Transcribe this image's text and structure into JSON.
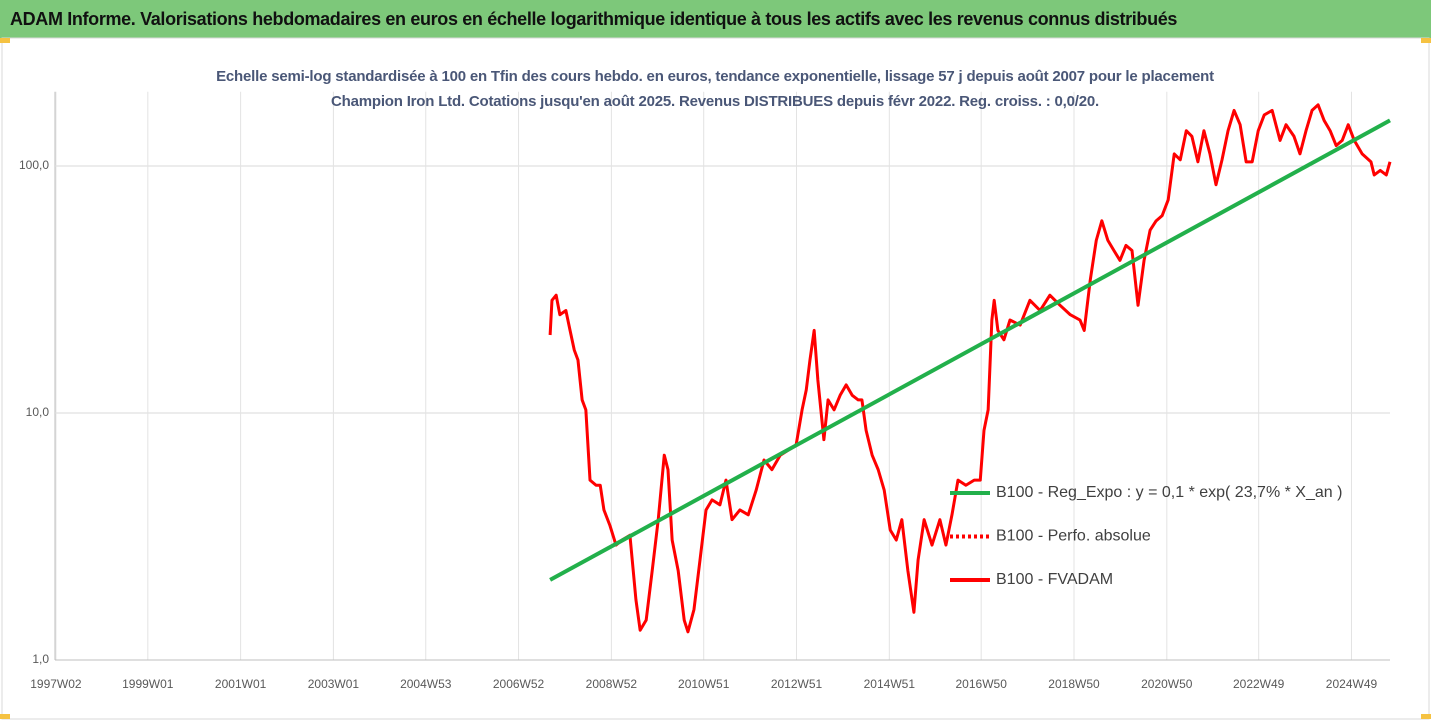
{
  "header": {
    "title": "ADAM Informe. Valorisations hebdomadaires en euros en échelle logarithmique identique à tous les actifs avec les revenus connus distribués"
  },
  "chart_data": {
    "type": "line",
    "title": "Echelle semi-log standardisée à 100 en Tfin des cours hebdo. en euros, tendance exponentielle, lissage 57 j depuis août 2007 pour le placement Champion Iron Ltd. Cotations jusqu'en août 2025. Revenus DISTRIBUES depuis févr 2022. Reg. croiss. : 0,0/20.",
    "xlim": [
      1997,
      2025.77
    ],
    "xticks": [
      {
        "value": 1997.02,
        "label": "1997W02"
      },
      {
        "value": 1999.0,
        "label": "1999W01"
      },
      {
        "value": 2001.0,
        "label": "2001W01"
      },
      {
        "value": 2003.0,
        "label": "2003W01"
      },
      {
        "value": 2004.99,
        "label": "2004W53"
      },
      {
        "value": 2006.99,
        "label": "2006W52"
      },
      {
        "value": 2008.99,
        "label": "2008W52"
      },
      {
        "value": 2010.98,
        "label": "2010W51"
      },
      {
        "value": 2012.98,
        "label": "2012W51"
      },
      {
        "value": 2014.98,
        "label": "2014W51"
      },
      {
        "value": 2016.96,
        "label": "2016W50"
      },
      {
        "value": 2018.96,
        "label": "2018W50"
      },
      {
        "value": 2020.96,
        "label": "2020W50"
      },
      {
        "value": 2022.94,
        "label": "2022W49"
      },
      {
        "value": 2024.94,
        "label": "2024W49"
      }
    ],
    "ylim": [
      1,
      200
    ],
    "yticks": [
      {
        "value": 1,
        "label": "1,0"
      },
      {
        "value": 10,
        "label": "10,0"
      },
      {
        "value": 100,
        "label": "100,0"
      }
    ],
    "log_y": true,
    "grid": true,
    "legend": "center-right",
    "series": [
      {
        "name": "B100 - Reg_Expo : y = 0,1 * exp( 23,7% *  X_an )",
        "color": "#22b04b",
        "line_style": "solid",
        "x": [
          2007.67,
          2025.77
        ],
        "values": [
          2.11,
          153
        ]
      },
      {
        "name": "B100 - Perfo. absolue",
        "color": "#ff0000",
        "line_style": "dotted",
        "x": [],
        "values": []
      },
      {
        "name": "B100 - FVADAM",
        "color": "#ff0000",
        "line_style": "solid",
        "x": [
          2007.67,
          2007.71,
          2007.8,
          2007.88,
          2008.01,
          2008.1,
          2008.19,
          2008.27,
          2008.36,
          2008.44,
          2008.53,
          2008.66,
          2008.75,
          2008.83,
          2008.96,
          2009.09,
          2009.22,
          2009.39,
          2009.52,
          2009.61,
          2009.74,
          2009.87,
          2010.0,
          2010.13,
          2010.21,
          2010.3,
          2010.43,
          2010.56,
          2010.64,
          2010.77,
          2010.9,
          2011.03,
          2011.16,
          2011.33,
          2011.46,
          2011.59,
          2011.76,
          2011.94,
          2012.11,
          2012.28,
          2012.45,
          2012.63,
          2012.8,
          2012.97,
          2013.1,
          2013.19,
          2013.27,
          2013.36,
          2013.44,
          2013.57,
          2013.66,
          2013.79,
          2013.92,
          2014.05,
          2014.18,
          2014.31,
          2014.39,
          2014.48,
          2014.61,
          2014.74,
          2014.87,
          2015.0,
          2015.13,
          2015.25,
          2015.38,
          2015.51,
          2015.6,
          2015.73,
          2015.9,
          2016.07,
          2016.2,
          2016.33,
          2016.46,
          2016.63,
          2016.81,
          2016.94,
          2017.02,
          2017.11,
          2017.19,
          2017.24,
          2017.32,
          2017.45,
          2017.58,
          2017.8,
          2018.01,
          2018.23,
          2018.44,
          2018.66,
          2018.88,
          2019.09,
          2019.18,
          2019.31,
          2019.44,
          2019.56,
          2019.69,
          2019.82,
          2019.95,
          2020.08,
          2020.21,
          2020.34,
          2020.47,
          2020.6,
          2020.73,
          2020.86,
          2020.99,
          2021.12,
          2021.25,
          2021.38,
          2021.5,
          2021.63,
          2021.76,
          2021.89,
          2022.02,
          2022.15,
          2022.28,
          2022.41,
          2022.54,
          2022.67,
          2022.8,
          2022.93,
          2023.06,
          2023.23,
          2023.4,
          2023.53,
          2023.7,
          2023.83,
          2023.96,
          2024.09,
          2024.22,
          2024.35,
          2024.48,
          2024.61,
          2024.74,
          2024.87,
          2025.0,
          2025.17,
          2025.36,
          2025.43,
          2025.56,
          2025.69,
          2025.77
        ],
        "values": [
          20.7,
          28.6,
          30,
          25,
          26,
          21.6,
          18,
          16.4,
          11.3,
          10.3,
          5.35,
          5.1,
          5.1,
          4.05,
          3.5,
          2.92,
          3.06,
          3.2,
          1.75,
          1.32,
          1.45,
          2.3,
          3.7,
          6.75,
          5.9,
          3.06,
          2.3,
          1.45,
          1.3,
          1.6,
          2.54,
          4.05,
          4.45,
          4.25,
          5.35,
          3.7,
          4.05,
          3.87,
          4.87,
          6.45,
          5.9,
          6.75,
          7.07,
          7.4,
          10.3,
          12.4,
          16.4,
          21.6,
          13.6,
          7.8,
          11.3,
          10.3,
          11.8,
          13,
          11.8,
          11.3,
          11.3,
          8.5,
          6.75,
          5.9,
          4.87,
          3.36,
          3.06,
          3.7,
          2.3,
          1.56,
          2.54,
          3.7,
          2.92,
          3.7,
          2.92,
          3.87,
          5.35,
          5.1,
          5.35,
          5.35,
          8.5,
          10.3,
          23.8,
          28.6,
          21.6,
          19.8,
          23.8,
          22.7,
          28.6,
          26,
          30,
          27.3,
          25,
          23.8,
          21.6,
          34.5,
          50,
          60,
          50,
          45.5,
          41.5,
          47.7,
          45.5,
          27.3,
          41.5,
          55,
          60,
          63,
          73,
          112,
          106,
          139,
          132,
          104,
          139,
          112,
          84,
          106,
          139,
          168,
          147,
          104,
          104,
          139,
          161,
          168,
          127,
          147,
          132,
          112,
          139,
          168,
          177,
          153,
          139,
          121,
          127,
          147,
          127,
          112,
          104,
          92,
          96,
          92,
          104
        ]
      }
    ]
  }
}
